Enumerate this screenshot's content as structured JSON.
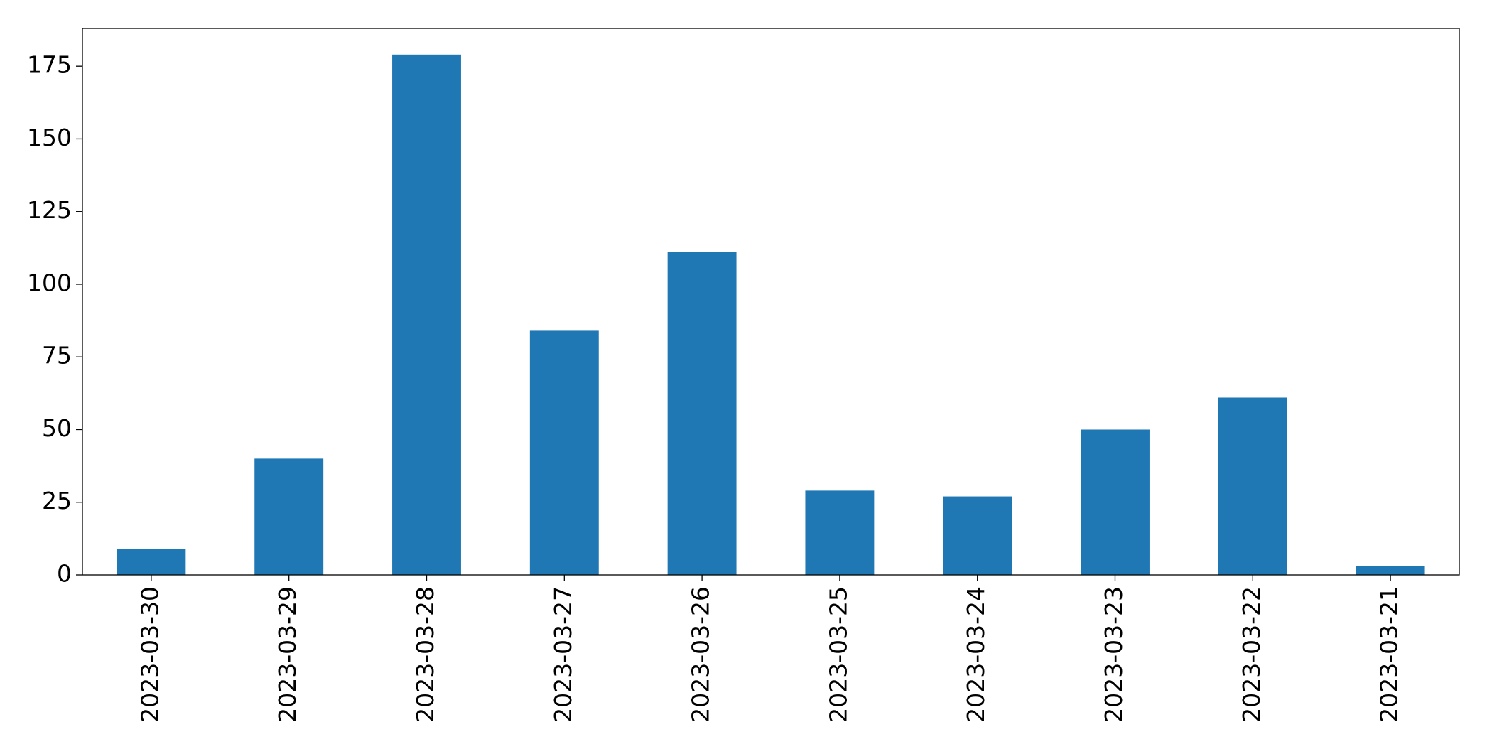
{
  "chart_data": {
    "type": "bar",
    "categories": [
      "2023-03-30",
      "2023-03-29",
      "2023-03-28",
      "2023-03-27",
      "2023-03-26",
      "2023-03-25",
      "2023-03-24",
      "2023-03-23",
      "2023-03-22",
      "2023-03-21"
    ],
    "values": [
      9,
      40,
      179,
      84,
      111,
      29,
      27,
      50,
      61,
      3
    ],
    "color": "#1f77b4",
    "ylim": [
      0,
      188
    ],
    "yticks": [
      0,
      25,
      50,
      75,
      100,
      125,
      150,
      175
    ],
    "grid": false
  }
}
